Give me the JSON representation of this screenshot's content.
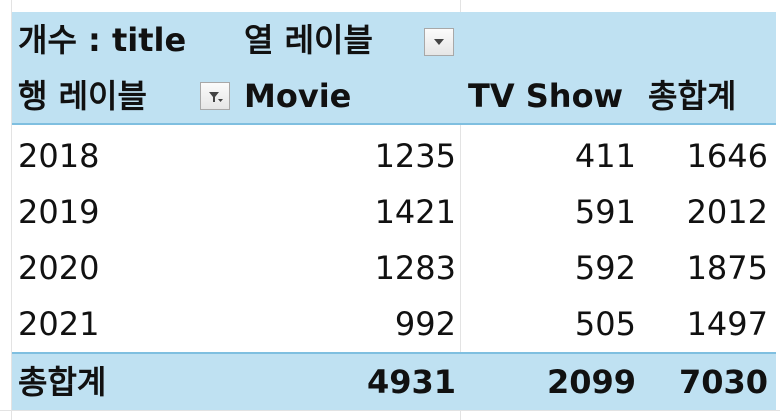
{
  "pivot": {
    "value_field_label": "개수 : title",
    "column_labels_label": "열 레이블",
    "row_labels_label": "행 레이블",
    "columns": [
      "Movie",
      "TV Show",
      "총합계"
    ],
    "rows": [
      {
        "label": "2018",
        "values": [
          "1235",
          "411",
          "1646"
        ]
      },
      {
        "label": "2019",
        "values": [
          "1421",
          "591",
          "2012"
        ]
      },
      {
        "label": "2020",
        "values": [
          "1283",
          "592",
          "1875"
        ]
      },
      {
        "label": "2021",
        "values": [
          "992",
          "505",
          "1497"
        ]
      }
    ],
    "total": {
      "label": "총합계",
      "values": [
        "4931",
        "2099",
        "7030"
      ]
    }
  },
  "icons": {
    "column_filter": "dropdown-arrow-icon",
    "row_filter": "filter-dropdown-icon"
  },
  "colors": {
    "header_fill": "#bfe1f2",
    "total_fill": "#bfe1f2",
    "separator": "#7fbfe0"
  }
}
